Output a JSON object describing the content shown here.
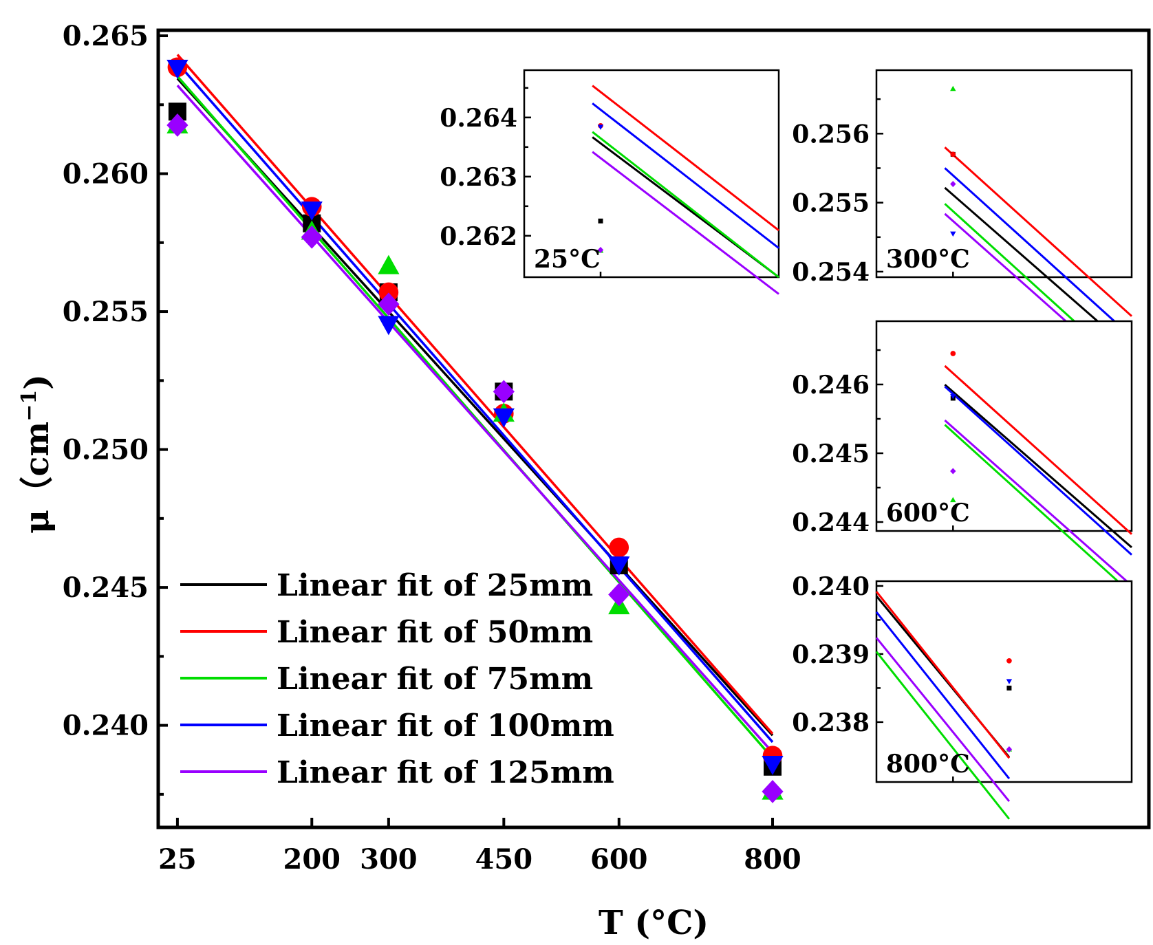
{
  "chart_data": {
    "type": "scatter",
    "xlabel": "T (°C)",
    "ylabel": "μ（cm",
    "ylabel_sup": "−1",
    "ylabel_close": ")",
    "x_ticks": [
      25,
      200,
      300,
      450,
      600,
      800
    ],
    "x_tick_labels": [
      "25",
      "200",
      "300",
      "450",
      "600",
      "800"
    ],
    "y_ticks": [
      0.24,
      0.245,
      0.25,
      0.255,
      0.26,
      0.265
    ],
    "y_tick_labels": [
      "0.240",
      "0.245",
      "0.250",
      "0.255",
      "0.260",
      "0.265"
    ],
    "ylim": [
      0.2363,
      0.2652
    ],
    "xlim": [
      0,
      1290
    ],
    "legend_position": "bottom-left",
    "series": [
      {
        "name": "Linear fit of 25mm",
        "color": "#000000",
        "marker": "square",
        "x": [
          25,
          200,
          300,
          450,
          600,
          800
        ],
        "y": [
          0.26225,
          0.2582,
          0.2557,
          0.2521,
          0.2458,
          0.2385
        ],
        "fit": {
          "slope": -3.073e-05,
          "intercept": 0.26422
        }
      },
      {
        "name": "Linear fit of 50mm",
        "color": "#ff0000",
        "marker": "circle",
        "x": [
          25,
          200,
          300,
          450,
          600,
          800
        ],
        "y": [
          0.26386,
          0.2588,
          0.2557,
          0.2513,
          0.24645,
          0.2389
        ],
        "fit": {
          "slope": -3.177e-05,
          "intercept": 0.26511
        }
      },
      {
        "name": "Linear fit of 75mm",
        "color": "#00dd00",
        "marker": "triangle-up",
        "x": [
          25,
          200,
          300,
          450,
          600,
          800
        ],
        "y": [
          0.26175,
          0.2579,
          0.25665,
          0.2513,
          0.24432,
          0.2376
        ],
        "fit": {
          "slope": -3.19e-05,
          "intercept": 0.26433
        }
      },
      {
        "name": "Linear fit of 100mm",
        "color": "#0000ff",
        "marker": "triangle-down",
        "x": [
          25,
          200,
          300,
          450,
          600,
          800
        ],
        "y": [
          0.26384,
          0.2587,
          0.25455,
          0.2512,
          0.24583,
          0.2386
        ],
        "fit": {
          "slope": -3.177e-05,
          "intercept": 0.26481
        }
      },
      {
        "name": "Linear fit of 125mm",
        "color": "#9900ff",
        "marker": "diamond",
        "x": [
          25,
          200,
          300,
          450,
          600,
          800
        ],
        "y": [
          0.26176,
          0.2577,
          0.25527,
          0.2521,
          0.24474,
          0.2376
        ],
        "fit": {
          "slope": -3.12e-05,
          "intercept": 0.26398
        }
      }
    ],
    "insets": [
      {
        "label": "25°C",
        "x_value": 25,
        "ylim": [
          0.2613,
          0.2648
        ],
        "y_ticks": [
          0.262,
          0.263,
          0.264
        ],
        "y_tick_labels": [
          "0.262",
          "0.263",
          "0.264"
        ]
      },
      {
        "label": "300°C",
        "x_value": 300,
        "ylim": [
          0.25392,
          0.25692
        ],
        "y_ticks": [
          0.254,
          0.255,
          0.256
        ],
        "y_tick_labels": [
          "0.254",
          "0.255",
          "0.256"
        ]
      },
      {
        "label": "600°C",
        "x_value": 600,
        "ylim": [
          0.24387,
          0.24692
        ],
        "y_ticks": [
          0.244,
          0.245,
          0.246
        ],
        "y_tick_labels": [
          "0.244",
          "0.245",
          "0.246"
        ]
      },
      {
        "label": "800°C",
        "x_value": 800,
        "ylim": [
          0.23712,
          0.24007
        ],
        "y_ticks": [
          0.238,
          0.239,
          0.24
        ],
        "y_tick_labels": [
          "0.238",
          "0.239",
          "0.240"
        ]
      }
    ]
  }
}
